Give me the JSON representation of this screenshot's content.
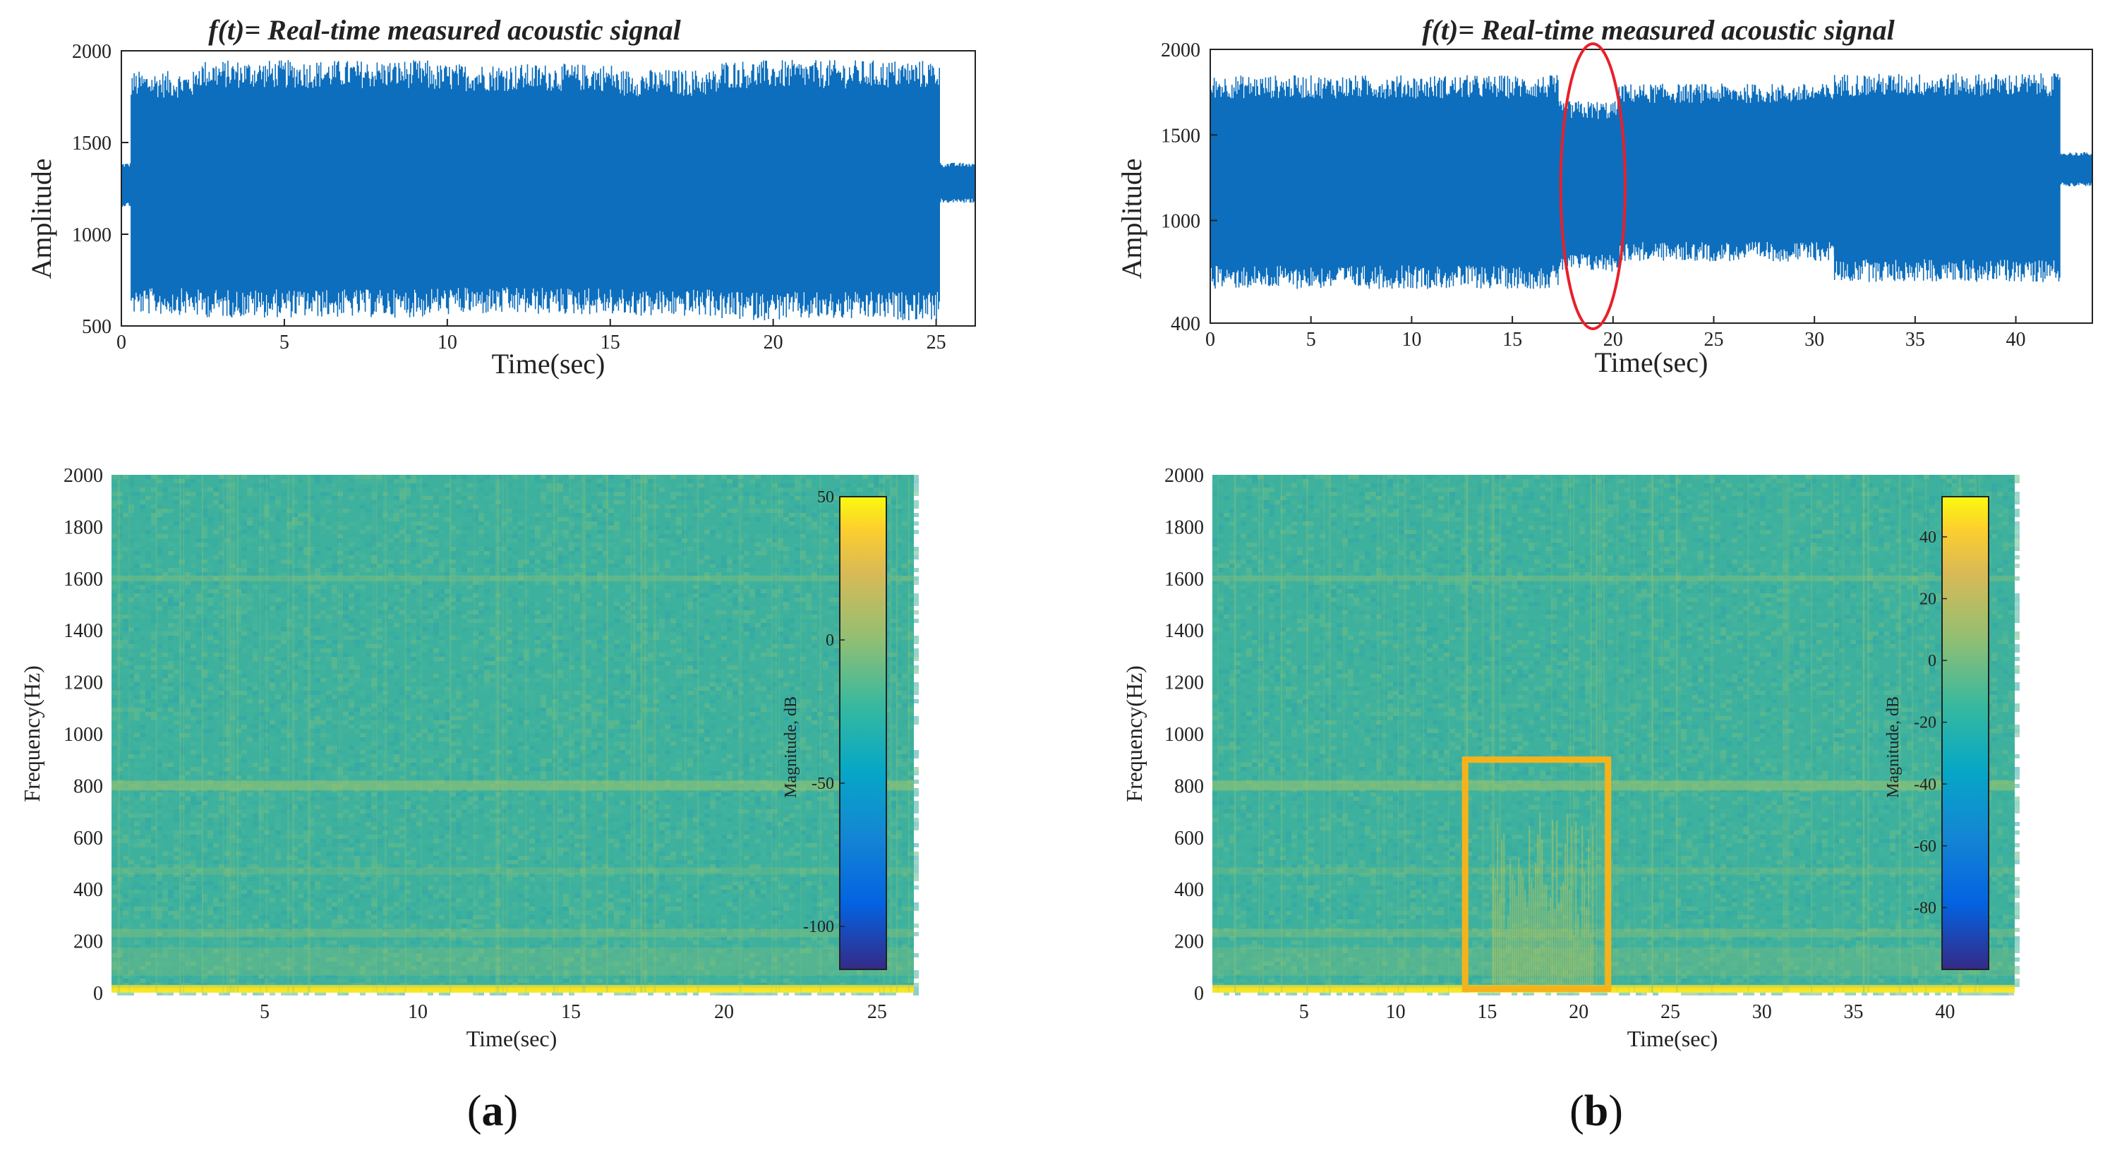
{
  "chart_data": [
    {
      "type": "line",
      "panel": "a",
      "title_prefix": "f(t)",
      "title_rest": "= Real-time measured acoustic signal",
      "xlabel": "Time(sec)",
      "ylabel": "Amplitude",
      "xlim": [
        0,
        26.2
      ],
      "ylim": [
        500,
        2000
      ],
      "xticks": [
        0,
        5,
        10,
        15,
        20,
        25
      ],
      "yticks": [
        500,
        1000,
        1500,
        2000
      ],
      "color": "#0d6ebd",
      "series": [
        {
          "segments": [
            {
              "t": [
                0.0,
                0.3
              ],
              "low": 1150,
              "high": 1390
            },
            {
              "t": [
                0.3,
                2.3
              ],
              "low": 560,
              "high": 1890
            },
            {
              "t": [
                2.3,
                9.4
              ],
              "low": 545,
              "high": 1950
            },
            {
              "t": [
                9.4,
                15.1
              ],
              "low": 560,
              "high": 1930
            },
            {
              "t": [
                15.1,
                18.4
              ],
              "low": 550,
              "high": 1900
            },
            {
              "t": [
                18.4,
                25.1
              ],
              "low": 530,
              "high": 1950
            },
            {
              "t": [
                25.1,
                26.2
              ],
              "low": 1170,
              "high": 1390
            }
          ]
        }
      ]
    },
    {
      "type": "line",
      "panel": "b",
      "title_prefix": "f(t)",
      "title_rest": "= Real-time measured acoustic signal",
      "xlabel": "Time(sec)",
      "ylabel": "Amplitude",
      "xlim": [
        0,
        43.8
      ],
      "ylim": [
        400,
        2000
      ],
      "ytick_positions": [
        400,
        1000,
        1500,
        2000
      ],
      "ytick_labels": [
        "400",
        "1000",
        "1500",
        "2000"
      ],
      "xticks": [
        0,
        5,
        10,
        15,
        20,
        25,
        30,
        35,
        40
      ],
      "color": "#0d6ebd",
      "annotation": {
        "shape": "ellipse",
        "color": "#e8202a",
        "t_center": 19.0,
        "t_halfwidth": 1.6
      },
      "series": [
        {
          "segments": [
            {
              "t": [
                0.0,
                17.3
              ],
              "low": 600,
              "high": 1850
            },
            {
              "t": [
                17.3,
                20.3
              ],
              "low": 700,
              "high": 1700
            },
            {
              "t": [
                20.3,
                31.0
              ],
              "low": 760,
              "high": 1800
            },
            {
              "t": [
                31.0,
                42.2
              ],
              "low": 640,
              "high": 1860
            },
            {
              "t": [
                42.2,
                43.8
              ],
              "low": 1200,
              "high": 1400
            }
          ]
        }
      ]
    },
    {
      "type": "heatmap",
      "panel": "a",
      "xlabel": "Time(sec)",
      "ylabel": "Frequency(Hz)",
      "xlim": [
        0,
        26.2
      ],
      "ylim": [
        0,
        2000
      ],
      "xticks": [
        5,
        10,
        15,
        20,
        25
      ],
      "yticks": [
        0,
        200,
        400,
        600,
        800,
        1000,
        1200,
        1400,
        1600,
        1800,
        2000
      ],
      "colorbar": {
        "label": "Magnitude, dB",
        "range": [
          -115,
          50
        ],
        "ticks": [
          50,
          0,
          -50,
          -100
        ]
      }
    },
    {
      "type": "heatmap",
      "panel": "b",
      "xlabel": "Time(sec)",
      "ylabel": "Frequency(Hz)",
      "xlim": [
        0,
        43.8
      ],
      "ylim": [
        0,
        2000
      ],
      "xticks": [
        5,
        10,
        15,
        20,
        25,
        30,
        35,
        40
      ],
      "yticks": [
        0,
        200,
        400,
        600,
        800,
        1000,
        1200,
        1400,
        1600,
        1800,
        2000
      ],
      "colorbar": {
        "label": "Magnitude, dB",
        "range": [
          -100,
          53
        ],
        "ticks": [
          40,
          20,
          0,
          -20,
          -40,
          -60,
          -80
        ]
      },
      "annotation": {
        "shape": "rect",
        "color": "#f5b31b",
        "t_range": [
          13.8,
          21.6
        ],
        "f_range": [
          15,
          900
        ]
      }
    }
  ],
  "panel_labels": [
    "a",
    "b"
  ]
}
